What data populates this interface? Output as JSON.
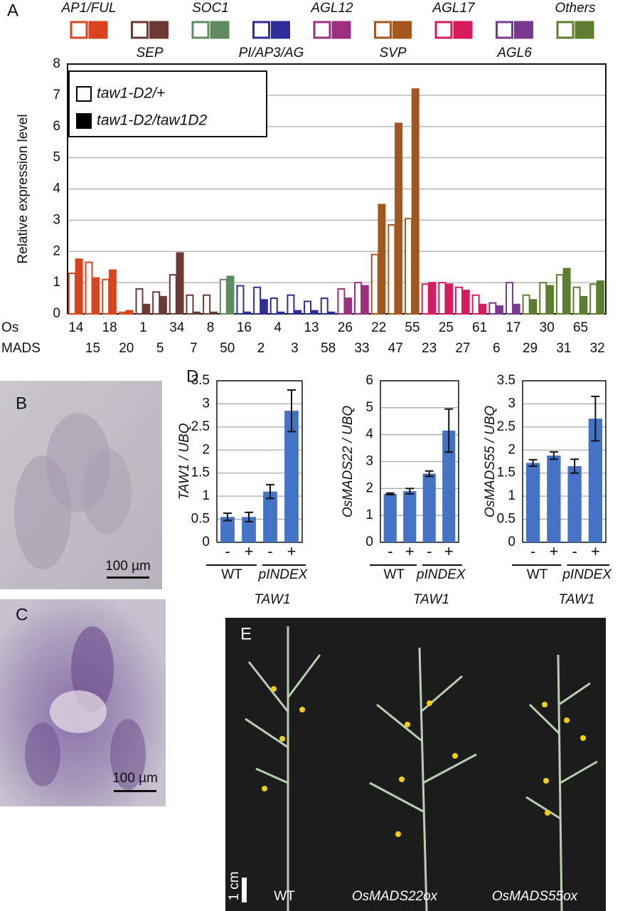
{
  "chart_data": [
    {
      "type": "bar",
      "panel_label": "A",
      "ylabel": "Relative expression level",
      "row_labels": [
        "Os",
        "MADS"
      ],
      "categories": [
        "14",
        "15",
        "18",
        "20",
        "1",
        "5",
        "34",
        "7",
        "8",
        "50",
        "16",
        "2",
        "4",
        "3",
        "13",
        "58",
        "26",
        "33",
        "22",
        "47",
        "55",
        "23",
        "25",
        "27",
        "61",
        "6",
        "17",
        "29",
        "30",
        "31",
        "65",
        "32"
      ],
      "families": [
        {
          "name": "AP1/FUL",
          "color": "#d9441e"
        },
        {
          "name": "SEP",
          "color": "#6b3a32"
        },
        {
          "name": "SOC1",
          "color": "#5e8c60"
        },
        {
          "name": "PI/AP3/AG",
          "color": "#2e2e9a"
        },
        {
          "name": "AGL12",
          "color": "#9c2f80"
        },
        {
          "name": "SVP",
          "color": "#a3561e"
        },
        {
          "name": "AGL17",
          "color": "#d81b5e"
        },
        {
          "name": "AGL6",
          "color": "#7a3890"
        },
        {
          "name": "Others",
          "color": "#5f7d2e"
        }
      ],
      "bar_colors": [
        "#d9441e",
        "#d9441e",
        "#d9441e",
        "#d9441e",
        "#6b3a32",
        "#6b3a32",
        "#6b3a32",
        "#6b3a32",
        "#6b3a32",
        "#5e8c60",
        "#2e2e9a",
        "#2e2e9a",
        "#2e2e9a",
        "#2e2e9a",
        "#2e2e9a",
        "#2e2e9a",
        "#9c2f80",
        "#9c2f80",
        "#a3561e",
        "#a3561e",
        "#a3561e",
        "#d81b5e",
        "#d81b5e",
        "#d81b5e",
        "#d81b5e",
        "#7a3890",
        "#7a3890",
        "#5f7d2e",
        "#5f7d2e",
        "#5f7d2e",
        "#5f7d2e",
        "#5f7d2e"
      ],
      "series": [
        {
          "name": "taw1-D2/+",
          "style": "outline",
          "color": "#000000",
          "values": [
            1.3,
            1.65,
            1.1,
            0.05,
            0.8,
            0.7,
            1.25,
            0.6,
            0.6,
            1.1,
            0.9,
            0.85,
            0.5,
            0.6,
            0.4,
            0.5,
            0.8,
            1.0,
            1.9,
            2.85,
            3.05,
            0.95,
            1.0,
            0.85,
            0.6,
            0.35,
            1.0,
            0.6,
            1.0,
            1.25,
            0.85,
            0.95
          ]
        },
        {
          "name": "taw1-D2/taw1D2",
          "style": "solid",
          "color": "#000000",
          "values": [
            1.75,
            1.15,
            1.4,
            0.1,
            0.3,
            0.55,
            1.95,
            0.05,
            0.05,
            1.2,
            0.05,
            0.45,
            0.05,
            0.1,
            0.1,
            0.05,
            0.5,
            0.9,
            3.5,
            6.1,
            7.2,
            1.0,
            0.95,
            0.75,
            0.3,
            0.25,
            0.3,
            0.45,
            0.9,
            1.45,
            0.55,
            1.05
          ]
        }
      ],
      "ylim": [
        0,
        8
      ],
      "yticks": [
        0,
        1,
        2,
        3,
        4,
        5,
        6,
        7,
        8
      ],
      "grid": true
    },
    {
      "type": "bar",
      "panel_label": "D",
      "ylabel": "TAW1 / UBQ",
      "categories": [
        "-",
        "+",
        "-",
        "+"
      ],
      "values": [
        0.55,
        0.55,
        1.1,
        2.85
      ],
      "errors": [
        0.08,
        0.1,
        0.15,
        0.45
      ],
      "color": "#4472c4",
      "group_labels": [
        "WT",
        "pINDEX",
        "TAW1"
      ],
      "ylim": [
        0,
        3.5
      ],
      "yticks": [
        0,
        0.5,
        1,
        1.5,
        2,
        2.5,
        3,
        3.5
      ],
      "grid": true
    },
    {
      "type": "bar",
      "ylabel": "OsMADS22 / UBQ",
      "categories": [
        "-",
        "+",
        "-",
        "+"
      ],
      "values": [
        1.8,
        1.9,
        2.55,
        4.15
      ],
      "errors": [
        0.03,
        0.1,
        0.1,
        0.8
      ],
      "color": "#4472c4",
      "group_labels": [
        "WT",
        "pINDEX",
        "TAW1"
      ],
      "ylim": [
        0,
        6
      ],
      "yticks": [
        0,
        1,
        2,
        3,
        4,
        5,
        6
      ],
      "grid": true
    },
    {
      "type": "bar",
      "ylabel": "OsMADS55 / UBQ",
      "categories": [
        "-",
        "+",
        "-",
        "+"
      ],
      "values": [
        1.72,
        1.88,
        1.65,
        2.68
      ],
      "errors": [
        0.07,
        0.08,
        0.15,
        0.48
      ],
      "color": "#4472c4",
      "group_labels": [
        "WT",
        "pINDEX",
        "TAW1"
      ],
      "ylim": [
        0,
        3.5
      ],
      "yticks": [
        0,
        0.5,
        1,
        1.5,
        2,
        2.5,
        3,
        3.5
      ],
      "grid": true
    }
  ],
  "panels": {
    "B": {
      "label": "B",
      "scale": "100 µm"
    },
    "C": {
      "label": "C",
      "scale": "100 µm"
    },
    "E": {
      "label": "E",
      "scale": "1 cm",
      "labels": [
        "WT",
        "OsMADS22ox",
        "OsMADS55ox"
      ]
    }
  }
}
